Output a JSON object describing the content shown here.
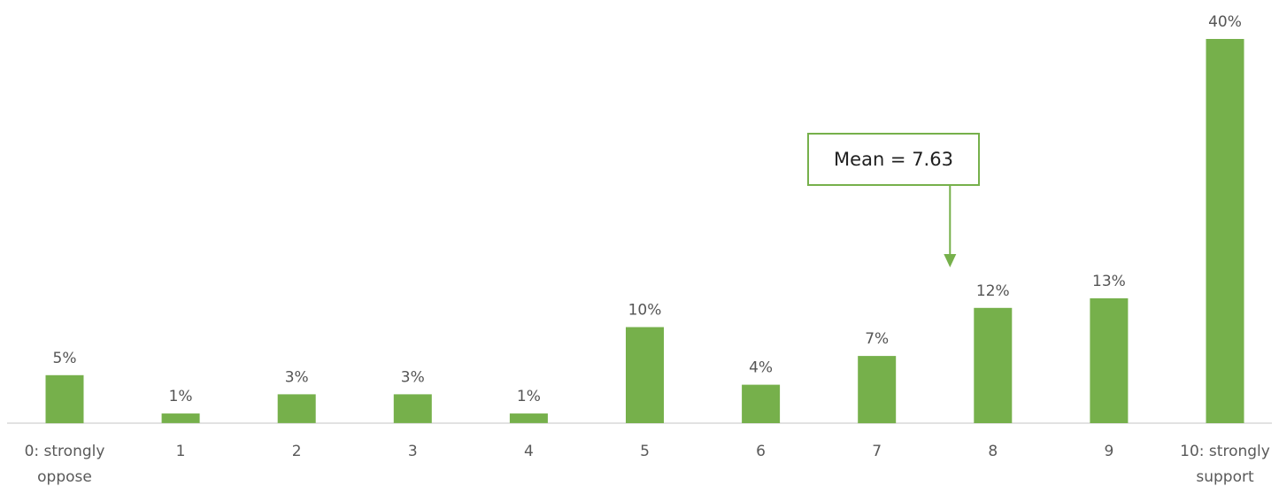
{
  "chart_data": {
    "type": "bar",
    "categories": [
      [
        "0: strongly",
        "oppose"
      ],
      [
        "1"
      ],
      [
        "2"
      ],
      [
        "3"
      ],
      [
        "4"
      ],
      [
        "5"
      ],
      [
        "6"
      ],
      [
        "7"
      ],
      [
        "8"
      ],
      [
        "9"
      ],
      [
        "10: strongly",
        "support"
      ]
    ],
    "values": [
      5,
      1,
      3,
      3,
      1,
      10,
      4,
      7,
      12,
      13,
      40
    ],
    "value_labels": [
      "5%",
      "1%",
      "3%",
      "3%",
      "1%",
      "10%",
      "4%",
      "7%",
      "12%",
      "13%",
      "40%"
    ],
    "ylim": [
      0,
      40
    ],
    "grid": false,
    "legend": "none",
    "bar_color": "#76b04b",
    "annotation": {
      "text": "Mean = 7.63",
      "points_to_x": 7.63
    }
  }
}
